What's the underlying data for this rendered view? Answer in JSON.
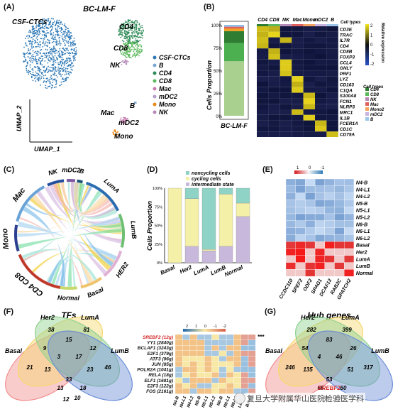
{
  "panels": {
    "A": {
      "label": "(A)",
      "title": "BC-LM-F",
      "cluster_main": "CSF-CTCs",
      "cluster_labels": [
        "CD4",
        "CD8",
        "NK",
        "B",
        "Mac",
        "mDC2",
        "Mono"
      ],
      "axis_y": "UMAP_2",
      "axis_x": "UMAP_1",
      "legend": [
        {
          "name": "CSF-CTCs",
          "color": "#2f79b6"
        },
        {
          "name": "B",
          "color": "#7aa7d6"
        },
        {
          "name": "CD4",
          "color": "#2e8b57"
        },
        {
          "name": "CD8",
          "color": "#5cb85c"
        },
        {
          "name": "Mac",
          "color": "#c77db0"
        },
        {
          "name": "mDC2",
          "color": "#b4a0cc"
        },
        {
          "name": "Mono",
          "color": "#e8891c"
        },
        {
          "name": "NK",
          "color": "#b58ab7"
        }
      ]
    },
    "B": {
      "label": "(B)",
      "ylabel": "Cells Proportion",
      "xlabel": "BC-LM-F",
      "yticks": [
        "0%",
        "25%",
        "50%",
        "75%",
        "100%"
      ],
      "bar_segments": [
        {
          "name": "CSF-CTCs",
          "fraction": 0.6,
          "color": "#a9d08e"
        },
        {
          "name": "CD8",
          "fraction": 0.2,
          "color": "#4caf50"
        },
        {
          "name": "CD4",
          "fraction": 0.13,
          "color": "#2e7d32"
        },
        {
          "name": "NK",
          "fraction": 0.03,
          "color": "#f0a020"
        },
        {
          "name": "Mac",
          "fraction": 0.02,
          "color": "#e06060"
        },
        {
          "name": "B",
          "fraction": 0.02,
          "color": "#90c0e8"
        }
      ],
      "heat_cols": [
        "CD4",
        "CD8",
        "NK",
        "Mac",
        "Mono",
        "mDC2",
        "B"
      ],
      "heat_rows": [
        "CD3E",
        "TRAC",
        "IL7R",
        "CD4",
        "CD8B",
        "FOXP3",
        "CCL4",
        "GNLY",
        "PRF1",
        "LYZ",
        "CD163",
        "C1QA",
        "S100A8",
        "FCN1",
        "NLRP3",
        "MRC1",
        "IL1B",
        "FCER1A",
        "CD1C",
        "CD79A"
      ],
      "cell_types_title": "Cell types",
      "cell_types": [
        "CD4",
        "CD8",
        "NK",
        "Mac",
        "Mono2",
        "mDC2",
        "B"
      ],
      "scale_title": "Relative expression",
      "scale_ticks": [
        "2",
        "1",
        "0",
        "-1",
        "-2"
      ]
    },
    "C": {
      "label": "(C)",
      "sectors": [
        "CD4 CD8",
        "Mono",
        "Mac",
        "NK",
        "mDC2",
        "B",
        "LumA",
        "LumB",
        "HER2",
        "Basal",
        "Normal"
      ]
    },
    "D": {
      "label": "(D)",
      "ylabel": "Cells Proportion",
      "legend": [
        "noncycling cells",
        "cycling cells",
        "intermediate state"
      ],
      "yticks": [
        "0%",
        "25%",
        "50%",
        "75%",
        "100%"
      ]
    },
    "E": {
      "label": "(E)",
      "scale_ticks": [
        "1",
        "0",
        "-1"
      ],
      "rows": [
        "N4-B",
        "N4-L1",
        "N4-L2",
        "N5-B",
        "N5-L1",
        "N5-L2",
        "N6-B",
        "N6-L1",
        "N6-L2",
        "Basal",
        "Her2",
        "LumA",
        "LumB",
        "Normal"
      ],
      "cols": [
        "CCDC110",
        "SPEF2",
        "ODF2",
        "SPAG1",
        "DCAF13",
        "RAB2C",
        "GPATCH2"
      ]
    },
    "F": {
      "label": "(F)",
      "title": "TFs",
      "venn_sets": [
        "Basal",
        "Her2",
        "LumA",
        "LumB"
      ],
      "venn_numbers": [
        "21",
        "38",
        "81",
        "46",
        "9",
        "15",
        "13",
        "3",
        "17",
        "23",
        "33",
        "13",
        "18",
        "12",
        "10",
        "12"
      ],
      "tfs": [
        "SREBF2 (12g)",
        "YY1 (2840g)",
        "BCLAF1 (3243g)",
        "E2F1 (379g)",
        "ATF3 (96g)",
        "JUN (85g)",
        "POLR2A (1041g)",
        "RELA (18g)",
        "ELF1 (1681g)",
        "E2F3 (122g)",
        "FOS (2161g)"
      ],
      "heat_cols": [
        "N4-B",
        "N4-L1",
        "N4-L2",
        "N5-B",
        "N5-L1",
        "N5-L2",
        "N6-B",
        "N6-L1",
        "N6-L2",
        "LumB",
        "Basal"
      ],
      "scale_ticks": [
        "2",
        "1",
        "0",
        "-1",
        "-2"
      ],
      "sig": "***"
    },
    "G": {
      "label": "(G)",
      "title": "Hub genes",
      "venn_sets": [
        "Basal",
        "Her2",
        "LumA",
        "LumB"
      ],
      "venn_numbers": [
        "246",
        "282",
        "399",
        "317",
        "54",
        "83",
        "135",
        "4",
        "46",
        "51",
        "53",
        "66",
        "60",
        "57",
        "25",
        "26"
      ],
      "center_gene": "SREBF2"
    }
  },
  "watermark": "复旦大学附属华山医院检验医学科"
}
